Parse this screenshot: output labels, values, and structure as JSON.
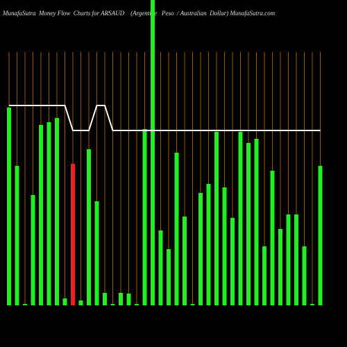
{
  "chart_data": {
    "type": "bar",
    "title": "MunafaSutra  Money Flow  Charts for ARSAUD    (Argentine   Peso  / Australian  Dollar) MunafaSutra.com",
    "categories": [
      null,
      null,
      null,
      null,
      null,
      null,
      null,
      null,
      null,
      null,
      null,
      null,
      null,
      null,
      null,
      null,
      null,
      null,
      null,
      null,
      null,
      null,
      null,
      null,
      null,
      null,
      null,
      null,
      null,
      null,
      null,
      null,
      null,
      null,
      null,
      null,
      null,
      null,
      null,
      null
    ],
    "values": [
      285,
      201,
      2,
      159,
      260,
      264,
      270,
      10,
      204,
      7,
      225,
      150,
      18,
      2,
      18,
      17,
      2,
      254,
      440,
      108,
      81,
      220,
      128,
      2,
      162,
      175,
      250,
      170,
      126,
      250,
      234,
      240,
      85,
      194,
      110,
      131,
      131,
      85,
      2,
      201
    ],
    "colors": [
      "#22ee22",
      "#22ee22",
      "#22ee22",
      "#22ee22",
      "#22ee22",
      "#22ee22",
      "#22ee22",
      "#22ee22",
      "#ee2222",
      "#22ee22",
      "#22ee22",
      "#22ee22",
      "#22ee22",
      "#22ee22",
      "#22ee22",
      "#22ee22",
      "#22ee22",
      "#22ee22",
      "#22ee22",
      "#22ee22",
      "#22ee22",
      "#22ee22",
      "#22ee22",
      "#22ee22",
      "#22ee22",
      "#22ee22",
      "#22ee22",
      "#22ee22",
      "#22ee22",
      "#22ee22",
      "#22ee22",
      "#22ee22",
      "#22ee22",
      "#22ee22",
      "#22ee22",
      "#22ee22",
      "#22ee22",
      "#22ee22",
      "#22ee22",
      "#22ee22"
    ],
    "line_values": [
      288,
      288,
      288,
      288,
      288,
      288,
      288,
      288,
      252,
      252,
      252,
      288,
      288,
      252,
      252,
      252,
      252,
      252,
      252,
      252,
      252,
      252,
      252,
      252,
      252,
      252,
      252,
      252,
      252,
      252,
      252,
      252,
      252,
      252,
      252,
      252,
      252,
      252,
      252,
      252
    ],
    "line_color": "#ffffff",
    "ylim": [
      0,
      440
    ],
    "grid": true,
    "grid_color": "#9a5c00"
  }
}
